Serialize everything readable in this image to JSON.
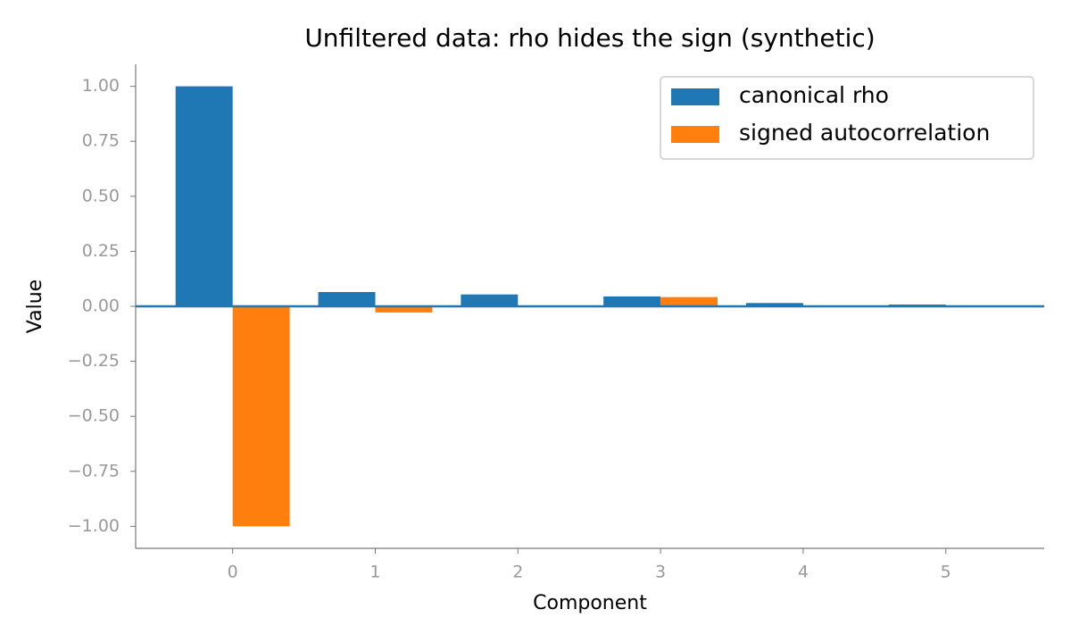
{
  "chart_data": {
    "type": "bar",
    "title": "Unfiltered data: rho hides the sign (synthetic)",
    "x_label": "Component",
    "y_label": "Value",
    "x": [
      0,
      1,
      2,
      3,
      4,
      5
    ],
    "series": [
      {
        "name": "canonical rho",
        "color": "#1f77b4",
        "values": [
          1.0,
          0.065,
          0.054,
          0.045,
          0.015,
          0.008
        ]
      },
      {
        "name": "signed autocorrelation",
        "color": "#ff7f0e",
        "values": [
          -1.0,
          -0.028,
          0.002,
          0.042,
          0.001,
          0.001
        ]
      }
    ],
    "xlim": [
      -0.68,
      5.69
    ],
    "xticks": [
      0,
      1,
      2,
      3,
      4,
      5
    ],
    "ylim": [
      -1.1,
      1.1
    ],
    "yticks": [
      {
        "value": -1,
        "label": "−1.00"
      },
      {
        "value": -0.75,
        "label": "−0.75"
      },
      {
        "value": -0.5,
        "label": "−0.50"
      },
      {
        "value": -0.25,
        "label": "−0.25"
      },
      {
        "value": 0,
        "label": "0.00"
      },
      {
        "value": 0.25,
        "label": "0.25"
      },
      {
        "value": 0.5,
        "label": "0.50"
      },
      {
        "value": 0.75,
        "label": "0.75"
      },
      {
        "value": 1,
        "label": "1.00"
      }
    ],
    "reference_line": {
      "value": 0,
      "color": "#1f77b4"
    },
    "legend": "upper right",
    "grid": false
  }
}
